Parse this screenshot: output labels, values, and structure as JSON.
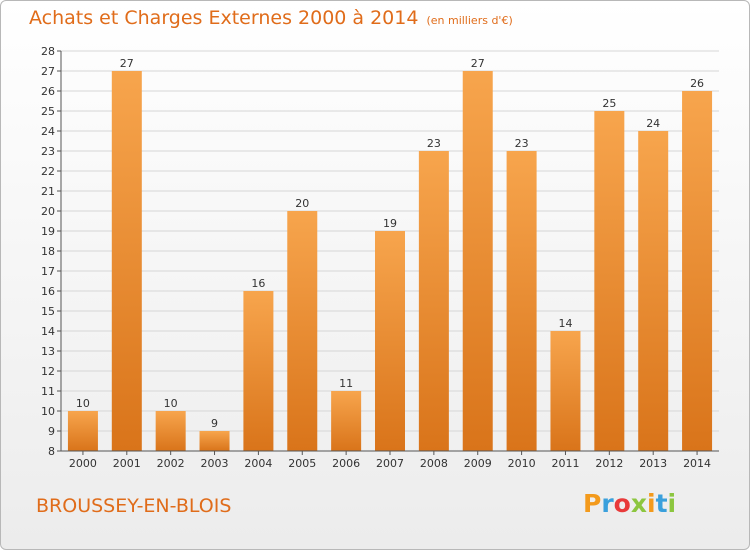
{
  "header": {
    "title": "Achats et Charges Externes 2000 à 2014",
    "subtitle": "(en milliers d'€)"
  },
  "footer": {
    "commune": "BROUSSEY-EN-BLOIS",
    "logo_letters": [
      "P",
      "r",
      "o",
      "x",
      "i",
      "t",
      "i"
    ],
    "logo_colors": [
      "#f39a1c",
      "#3aa0dc",
      "#e83a3a",
      "#8cc63f",
      "#f39a1c",
      "#3aa0dc",
      "#8cc63f"
    ]
  },
  "colors": {
    "bar_light": "#f7a54d",
    "bar_dark": "#d9741a",
    "axis": "#555555",
    "grid": "#d6d6d6"
  },
  "chart_data": {
    "type": "bar",
    "title": "Achats et Charges Externes 2000 à 2014",
    "subtitle": "(en milliers d'€)",
    "categories": [
      "2000",
      "2001",
      "2002",
      "2003",
      "2004",
      "2005",
      "2006",
      "2007",
      "2008",
      "2009",
      "2010",
      "2011",
      "2012",
      "2013",
      "2014"
    ],
    "values": [
      10,
      27,
      10,
      9,
      16,
      20,
      11,
      19,
      23,
      27,
      23,
      14,
      25,
      24,
      26
    ],
    "ylim": [
      8,
      28
    ],
    "yticks": [
      8,
      9,
      10,
      11,
      12,
      13,
      14,
      15,
      16,
      17,
      18,
      19,
      20,
      21,
      22,
      23,
      24,
      25,
      26,
      27,
      28
    ],
    "grid": true,
    "data_labels": true
  }
}
